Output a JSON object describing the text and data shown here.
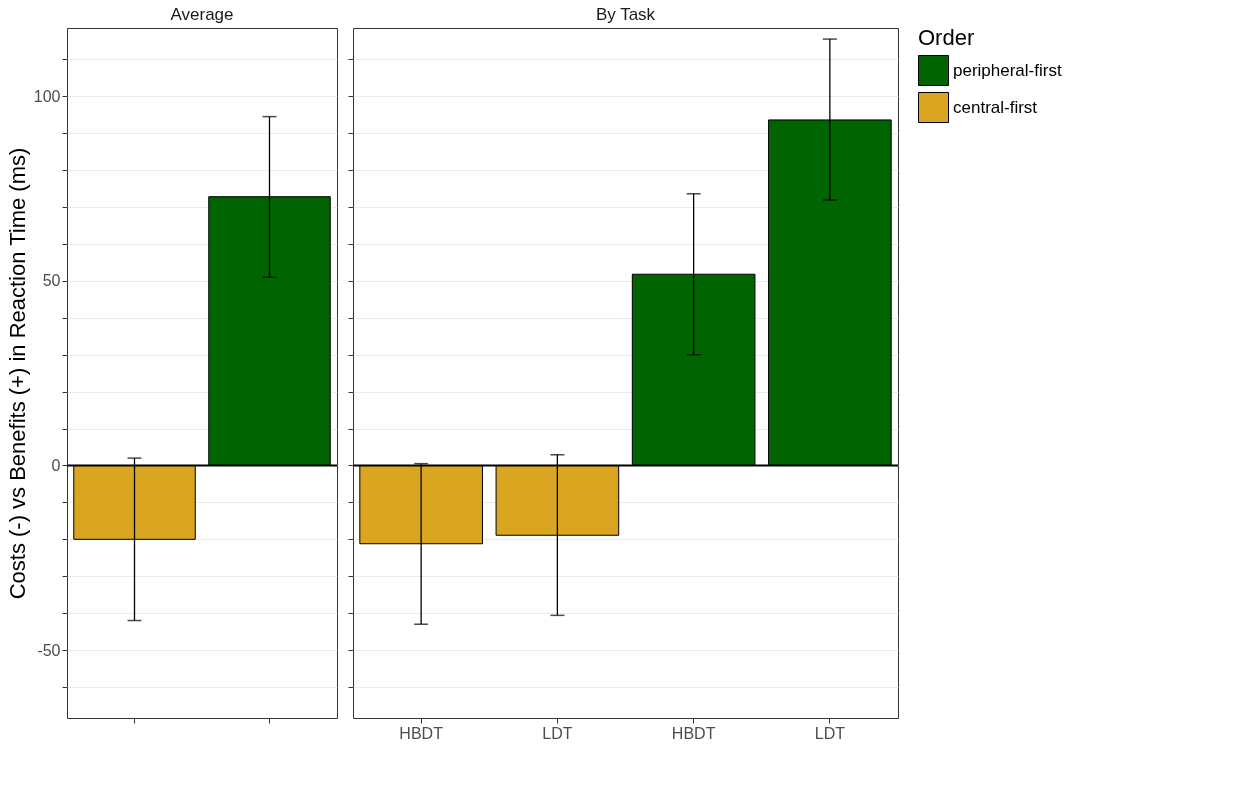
{
  "chart_data": [
    {
      "type": "bar",
      "title": "Average",
      "ylabel": "Costs (-) vs Benefits (+) in Reaction Time (ms)",
      "categories": [
        null,
        null
      ],
      "series": [
        {
          "name": "peripheral-first",
          "color": "#006400",
          "values": [
            null,
            72.8
          ],
          "errors": [
            null,
            [
              51,
              94.5
            ]
          ]
        },
        {
          "name": "central-first",
          "color": "#daa520",
          "values": [
            -20,
            null
          ],
          "errors": [
            [
              -42,
              2
            ],
            null
          ]
        }
      ],
      "ylim": [
        -68.4,
        118.5
      ],
      "yticks": [
        {
          "value": -60,
          "label": null
        },
        -50,
        {
          "value": -40,
          "label": null
        },
        {
          "value": -30,
          "label": null
        },
        {
          "value": -20,
          "label": null
        },
        {
          "value": -10,
          "label": null
        },
        0,
        {
          "value": 10,
          "label": null
        },
        {
          "value": 20,
          "label": null
        },
        {
          "value": 30,
          "label": null
        },
        {
          "value": 40,
          "label": null
        },
        50,
        {
          "value": 60,
          "label": null
        },
        {
          "value": 70,
          "label": null
        },
        {
          "value": 80,
          "label": null
        },
        {
          "value": 90,
          "label": null
        },
        100,
        {
          "value": 110,
          "label": null
        }
      ],
      "grid": "y",
      "legend": "right",
      "ref_lines": [
        {
          "axis": "y",
          "value": 0,
          "color": "#000000"
        }
      ]
    },
    {
      "type": "bar",
      "title": "By Task",
      "categories": [
        "HBDT",
        "LDT",
        "HBDT",
        "LDT"
      ],
      "series": [
        {
          "name": "peripheral-first",
          "color": "#006400",
          "values": [
            null,
            null,
            51.8,
            93.6
          ],
          "errors": [
            null,
            null,
            [
              30,
              73.6
            ],
            [
              71.9,
              115.5
            ]
          ]
        },
        {
          "name": "central-first",
          "color": "#daa520",
          "values": [
            -21.2,
            -18.9,
            null,
            null
          ],
          "errors": [
            [
              -43,
              0.5
            ],
            [
              -40.6,
              2.9
            ],
            null,
            null
          ]
        }
      ],
      "ylim": [
        -68.4,
        118.5
      ],
      "yticks": [
        {
          "value": -60,
          "label": null
        },
        -50,
        {
          "value": -40,
          "label": null
        },
        {
          "value": -30,
          "label": null
        },
        {
          "value": -20,
          "label": null
        },
        {
          "value": -10,
          "label": null
        },
        0,
        {
          "value": 10,
          "label": null
        },
        {
          "value": 20,
          "label": null
        },
        {
          "value": 30,
          "label": null
        },
        {
          "value": 40,
          "label": null
        },
        50,
        {
          "value": 60,
          "label": null
        },
        {
          "value": 70,
          "label": null
        },
        {
          "value": 80,
          "label": null
        },
        {
          "value": 90,
          "label": null
        },
        100,
        {
          "value": 110,
          "label": null
        }
      ],
      "grid": "y",
      "tick_labels": "x",
      "legend": "right",
      "legend_title": "Order",
      "ref_lines": [
        {
          "axis": "y",
          "value": 0,
          "color": "#000000"
        }
      ]
    }
  ]
}
